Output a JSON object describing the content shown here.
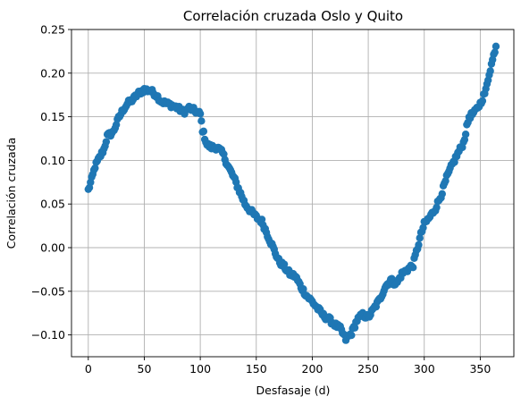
{
  "chart_data": {
    "type": "scatter",
    "title": "Correlación cruzada Oslo y Quito",
    "xlabel": "Desfasaje (d)",
    "ylabel": "Correlación cruzada",
    "xlim": [
      -15,
      380
    ],
    "ylim": [
      -0.125,
      0.25
    ],
    "xticks": [
      0,
      50,
      100,
      150,
      200,
      250,
      300,
      350
    ],
    "xtick_labels": [
      "0",
      "50",
      "100",
      "150",
      "200",
      "250",
      "300",
      "350"
    ],
    "yticks": [
      -0.1,
      -0.05,
      0.0,
      0.05,
      0.1,
      0.15,
      0.2,
      0.25
    ],
    "ytick_labels": [
      "−0.10",
      "−0.05",
      "0.00",
      "0.05",
      "0.10",
      "0.15",
      "0.20",
      "0.25"
    ],
    "grid": true,
    "marker_color": "#1f77b4",
    "keypoints": [
      [
        0,
        0.066
      ],
      [
        3,
        0.078
      ],
      [
        6,
        0.093
      ],
      [
        10,
        0.103
      ],
      [
        14,
        0.113
      ],
      [
        17,
        0.128
      ],
      [
        22,
        0.132
      ],
      [
        27,
        0.148
      ],
      [
        31,
        0.158
      ],
      [
        35,
        0.165
      ],
      [
        40,
        0.17
      ],
      [
        45,
        0.177
      ],
      [
        50,
        0.181
      ],
      [
        55,
        0.18
      ],
      [
        60,
        0.176
      ],
      [
        65,
        0.168
      ],
      [
        70,
        0.165
      ],
      [
        75,
        0.163
      ],
      [
        80,
        0.16
      ],
      [
        85,
        0.155
      ],
      [
        90,
        0.16
      ],
      [
        95,
        0.157
      ],
      [
        100,
        0.153
      ],
      [
        102,
        0.135
      ],
      [
        106,
        0.118
      ],
      [
        110,
        0.115
      ],
      [
        115,
        0.115
      ],
      [
        120,
        0.108
      ],
      [
        125,
        0.093
      ],
      [
        130,
        0.08
      ],
      [
        135,
        0.065
      ],
      [
        140,
        0.05
      ],
      [
        145,
        0.042
      ],
      [
        150,
        0.035
      ],
      [
        155,
        0.03
      ],
      [
        160,
        0.015
      ],
      [
        165,
        0.0
      ],
      [
        170,
        -0.015
      ],
      [
        175,
        -0.022
      ],
      [
        180,
        -0.03
      ],
      [
        185,
        -0.033
      ],
      [
        190,
        -0.045
      ],
      [
        195,
        -0.055
      ],
      [
        200,
        -0.062
      ],
      [
        205,
        -0.07
      ],
      [
        210,
        -0.078
      ],
      [
        215,
        -0.082
      ],
      [
        220,
        -0.088
      ],
      [
        225,
        -0.093
      ],
      [
        230,
        -0.105
      ],
      [
        235,
        -0.098
      ],
      [
        240,
        -0.083
      ],
      [
        245,
        -0.077
      ],
      [
        250,
        -0.08
      ],
      [
        255,
        -0.07
      ],
      [
        260,
        -0.06
      ],
      [
        265,
        -0.045
      ],
      [
        270,
        -0.037
      ],
      [
        275,
        -0.042
      ],
      [
        280,
        -0.03
      ],
      [
        285,
        -0.025
      ],
      [
        290,
        -0.02
      ],
      [
        293,
        -0.005
      ],
      [
        297,
        0.015
      ],
      [
        300,
        0.027
      ],
      [
        305,
        0.035
      ],
      [
        310,
        0.045
      ],
      [
        315,
        0.06
      ],
      [
        320,
        0.08
      ],
      [
        325,
        0.095
      ],
      [
        330,
        0.108
      ],
      [
        335,
        0.12
      ],
      [
        340,
        0.15
      ],
      [
        345,
        0.155
      ],
      [
        350,
        0.165
      ],
      [
        355,
        0.18
      ],
      [
        358,
        0.2
      ],
      [
        361,
        0.215
      ],
      [
        364,
        0.232
      ]
    ]
  }
}
